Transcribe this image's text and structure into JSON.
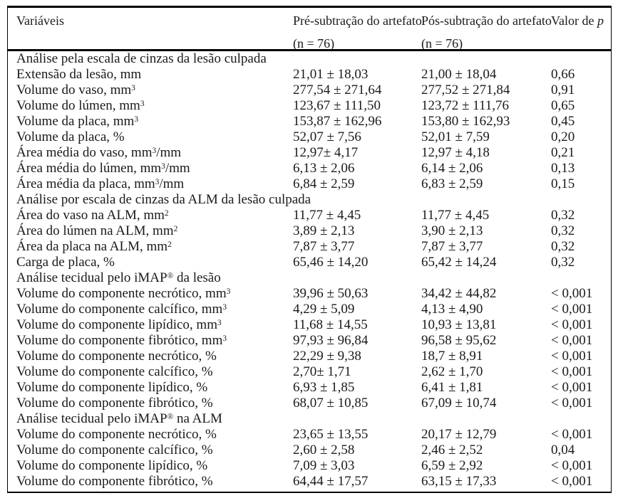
{
  "page": {
    "background": "#ffffff",
    "text_color": "#1a1a1a",
    "rule_color": "#000000"
  },
  "table": {
    "header": {
      "variables": "Variáveis",
      "pre_line1": "Pré-subtração do artefato",
      "pre_line2": "(n = 76)",
      "pos_line1": "Pós-subtração do artefato",
      "pos_line2": "(n = 76)",
      "p_prefix": "Valor de",
      "p_symbol": "p"
    },
    "rows": [
      {
        "type": "section",
        "label": "Análise pela escala de cinzas da lesão culpada"
      },
      {
        "type": "data",
        "label": "Extensão da lesão, mm",
        "pre": "21,01 ± 18,03",
        "pos": "21,00 ± 18,04",
        "p": "0,66"
      },
      {
        "type": "data",
        "label": "Volume do vaso, mm^{3}",
        "pre": "277,54 ± 271,64",
        "pos": "277,52 ± 271,84",
        "p": "0,91"
      },
      {
        "type": "data",
        "label": "Volume do lúmen, mm^{3}",
        "pre": "123,67 ± 111,50",
        "pos": "123,72 ± 111,76",
        "p": "0,65"
      },
      {
        "type": "data",
        "label": "Volume da placa, mm^{3}",
        "pre": "153,87 ± 162,96",
        "pos": "153,80 ± 162,93",
        "p": "0,45"
      },
      {
        "type": "data",
        "label": "Volume da placa, %",
        "pre": "52,07 ± 7,56",
        "pos": "52,01 ± 7,59",
        "p": "0,20"
      },
      {
        "type": "data",
        "label": "Área média do vaso, mm^{3}/mm",
        "pre": "12,97± 4,17",
        "pos": "12,97 ± 4,18",
        "p": "0,21"
      },
      {
        "type": "data",
        "label": "Área média do lúmen, mm^{3}/mm",
        "pre": "6,13 ± 2,06",
        "pos": "6,14 ± 2,06",
        "p": "0,13"
      },
      {
        "type": "data",
        "label": "Área média da placa, mm^{3}/mm",
        "pre": "6,84 ± 2,59",
        "pos": "6,83 ± 2,59",
        "p": "0,15"
      },
      {
        "type": "section",
        "label": "Análise por escala de cinzas da ALM da lesão culpada"
      },
      {
        "type": "data",
        "label": "Área do vaso na ALM, mm^{2}",
        "pre": "11,77 ± 4,45",
        "pos": "11,77 ± 4,45",
        "p": "0,32"
      },
      {
        "type": "data",
        "label": "Área do lúmen na ALM, mm^{2}",
        "pre": "3,89 ± 2,13",
        "pos": "3,90 ± 2,13",
        "p": "0,32"
      },
      {
        "type": "data",
        "label": "Área da placa na ALM, mm^{2}",
        "pre": "7,87 ± 3,77",
        "pos": "7,87 ± 3,77",
        "p": "0,32"
      },
      {
        "type": "data",
        "label": "Carga de placa, %",
        "pre": "65,46 ± 14,20",
        "pos": "65,42 ± 14,24",
        "p": "0,32"
      },
      {
        "type": "section",
        "label": "Análise tecidual pelo iMAP^{®} da lesão"
      },
      {
        "type": "data",
        "label": "Volume do componente necrótico, mm^{3}",
        "pre": "39,96 ± 50,63",
        "pos": "34,42 ± 44,82",
        "p": "< 0,001"
      },
      {
        "type": "data",
        "label": "Volume do componente calcífico, mm^{3}",
        "pre": "4,29 ± 5,09",
        "pos": "4,13 ± 4,90",
        "p": "< 0,001"
      },
      {
        "type": "data",
        "label": "Volume do componente lipídico, mm^{3}",
        "pre": "11,68 ± 14,55",
        "pos": "10,93 ± 13,81",
        "p": "< 0,001"
      },
      {
        "type": "data",
        "label": "Volume do componente fibrótico, mm^{3}",
        "pre": "97,93 ± 96,84",
        "pos": "96,58 ± 95,62",
        "p": "< 0,001"
      },
      {
        "type": "data",
        "label": "Volume do componente necrótico, %",
        "pre": "22,29 ± 9,38",
        "pos": "18,7 ± 8,91",
        "p": "< 0,001"
      },
      {
        "type": "data",
        "label": "Volume do componente calcífico, %",
        "pre": "2,70± 1,71",
        "pos": "2,62 ± 1,70",
        "p": "< 0,001"
      },
      {
        "type": "data",
        "label": "Volume do componente lipídico, %",
        "pre": "6,93 ± 1,85",
        "pos": "6,41 ± 1,81",
        "p": "< 0,001"
      },
      {
        "type": "data",
        "label": "Volume do componente fibrótico, %",
        "pre": "68,07 ± 10,85",
        "pos": "67,09 ± 10,74",
        "p": "< 0,001"
      },
      {
        "type": "section",
        "label": "Análise tecidual pelo iMAP^{®} na ALM"
      },
      {
        "type": "data",
        "label": "Volume do componente necrótico, %",
        "pre": "23,65 ± 13,55",
        "pos": "20,17 ± 12,79",
        "p": "< 0,001"
      },
      {
        "type": "data",
        "label": "Volume do componente calcífico, %",
        "pre": "2,60 ± 2,58",
        "pos": "2,46 ± 2,52",
        "p": "0,04"
      },
      {
        "type": "data",
        "label": "Volume do componente lipídico, %",
        "pre": "7,09 ± 3,03",
        "pos": "6,59 ± 2,92",
        "p": "< 0,001"
      },
      {
        "type": "data",
        "label": "Volume do componente fibrótico, %",
        "pre": "64,44 ± 17,57",
        "pos": "63,15 ± 17,33",
        "p": "< 0,001"
      }
    ]
  }
}
